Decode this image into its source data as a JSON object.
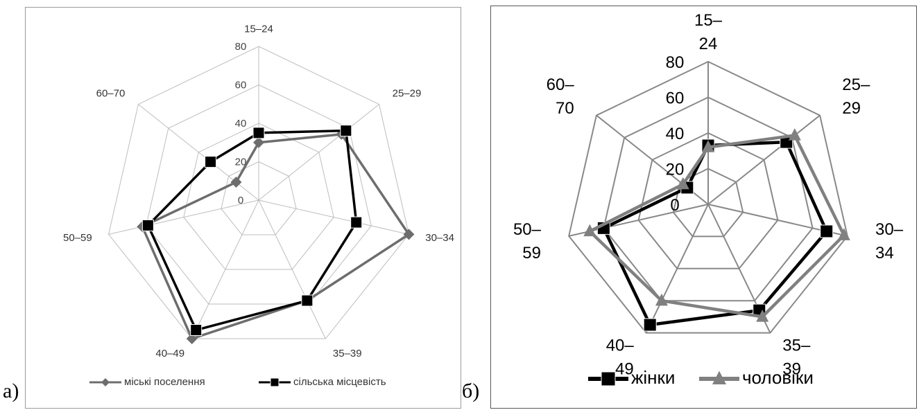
{
  "labels": {
    "panel_a": "а)",
    "panel_b": "б)"
  },
  "chart_data": [
    {
      "type": "radar",
      "title": "",
      "categories": [
        "15–24",
        "25–29",
        "30–34",
        "35–39",
        "40–49",
        "50–59",
        "60–70"
      ],
      "rlim": [
        0,
        80
      ],
      "ticks": [
        0,
        20,
        40,
        60,
        80
      ],
      "grid": true,
      "legend_position": "bottom",
      "series": [
        {
          "name": "міські поселення",
          "values": [
            30,
            55,
            80,
            58,
            80,
            62,
            15
          ],
          "color": "#6d6d6d",
          "marker": "diamond"
        },
        {
          "name": "сільська місцевість",
          "values": [
            35,
            58,
            52,
            58,
            75,
            59,
            32
          ],
          "color": "#000000",
          "marker": "square"
        }
      ]
    },
    {
      "type": "radar",
      "title": "",
      "categories": [
        "15–24",
        "25–29",
        "30–34",
        "35–39",
        "40–49",
        "50–59",
        "60–70"
      ],
      "rlim": [
        0,
        80
      ],
      "ticks": [
        0,
        20,
        40,
        60,
        80
      ],
      "grid": true,
      "legend_position": "bottom",
      "series": [
        {
          "name": "жінки",
          "values": [
            33,
            56,
            68,
            66,
            75,
            60,
            15
          ],
          "color": "#000000",
          "marker": "square"
        },
        {
          "name": "чоловіки",
          "values": [
            32,
            62,
            78,
            70,
            60,
            68,
            18
          ],
          "color": "#808080",
          "marker": "triangle"
        }
      ]
    }
  ]
}
